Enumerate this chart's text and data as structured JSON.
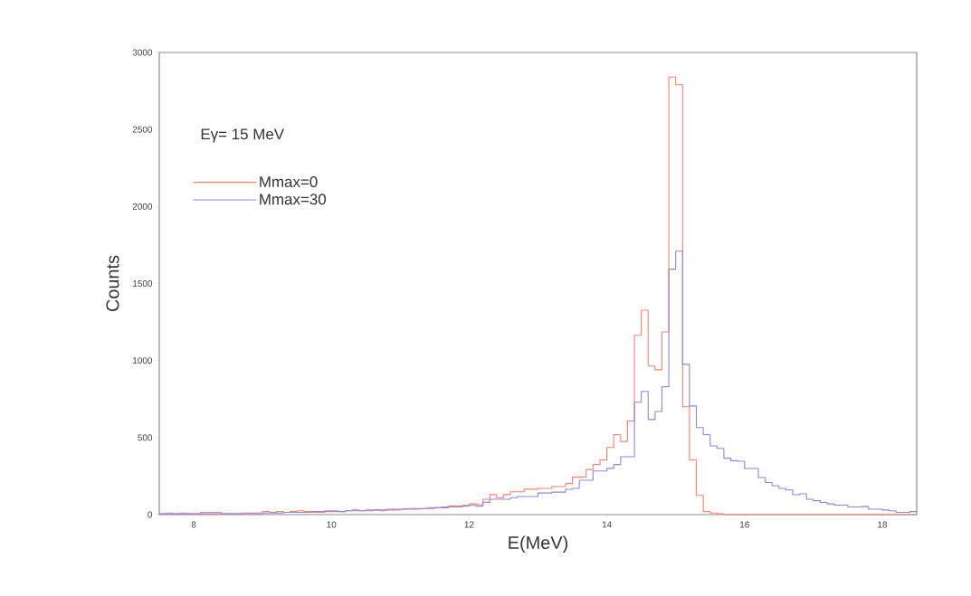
{
  "chart_data": {
    "type": "histogram",
    "xlabel": "E(MeV)",
    "ylabel": "Counts",
    "annotations": [
      "Eγ= 15 MeV"
    ],
    "bins": [
      7.5,
      7.6,
      7.7,
      7.8,
      7.9,
      8.0,
      8.1,
      8.2,
      8.3,
      8.4,
      8.5,
      8.6,
      8.7,
      8.8,
      8.9,
      9.0,
      9.1,
      9.2,
      9.3,
      9.4,
      9.5,
      9.6,
      9.7,
      9.8,
      9.9,
      10.0,
      10.1,
      10.2,
      10.3,
      10.4,
      10.5,
      10.6,
      10.7,
      10.8,
      10.9,
      11.0,
      11.1,
      11.2,
      11.3,
      11.4,
      11.5,
      11.6,
      11.7,
      11.8,
      11.9,
      12.0,
      12.1,
      12.2,
      12.3,
      12.4,
      12.5,
      12.6,
      12.7,
      12.8,
      12.9,
      13.0,
      13.1,
      13.2,
      13.3,
      13.4,
      13.5,
      13.6,
      13.7,
      13.8,
      13.9,
      14.0,
      14.1,
      14.2,
      14.3,
      14.4,
      14.5,
      14.6,
      14.7,
      14.8,
      14.9,
      15.0,
      15.1,
      15.2,
      15.3,
      15.4,
      15.5,
      15.6,
      15.7,
      15.8,
      15.9,
      16.0,
      16.1,
      16.2,
      16.3,
      16.4,
      16.5,
      16.6,
      16.7,
      16.8,
      16.9,
      17.0,
      17.1,
      17.2,
      17.3,
      17.4,
      17.5,
      17.6,
      17.7,
      17.8,
      17.9,
      18.0,
      18.1,
      18.2,
      18.3,
      18.4,
      18.5
    ],
    "series": [
      {
        "name": "Mmax=0",
        "color": "#ff8070",
        "values": [
          5,
          10,
          5,
          10,
          5,
          5,
          15,
          15,
          15,
          5,
          5,
          5,
          5,
          5,
          5,
          20,
          15,
          20,
          15,
          20,
          25,
          20,
          15,
          15,
          25,
          25,
          20,
          25,
          30,
          25,
          30,
          30,
          25,
          35,
          30,
          35,
          40,
          35,
          40,
          45,
          45,
          50,
          55,
          55,
          60,
          70,
          65,
          100,
          130,
          110,
          130,
          148,
          148,
          165,
          165,
          170,
          170,
          182,
          182,
          202,
          243,
          243,
          293,
          325,
          355,
          436,
          520,
          475,
          608,
          1164,
          1327,
          964,
          940,
          1186,
          2840,
          2790,
          700,
          355,
          125,
          20,
          10,
          5,
          0,
          0,
          0,
          0,
          0,
          0,
          0,
          0,
          0,
          0,
          0,
          0,
          0,
          0,
          0,
          0,
          0,
          0,
          0,
          0,
          0,
          0,
          0,
          0,
          0,
          0,
          0,
          0
        ]
      },
      {
        "name": "Mmax=30",
        "color": "#8c86e6",
        "values": [
          5,
          5,
          5,
          5,
          5,
          5,
          5,
          5,
          5,
          5,
          5,
          5,
          10,
          10,
          10,
          10,
          10,
          10,
          15,
          15,
          15,
          15,
          20,
          20,
          20,
          20,
          20,
          25,
          25,
          25,
          25,
          30,
          30,
          30,
          35,
          35,
          35,
          40,
          40,
          40,
          45,
          45,
          50,
          50,
          55,
          60,
          55,
          80,
          100,
          100,
          100,
          110,
          117,
          117,
          117,
          140,
          140,
          146,
          146,
          164,
          170,
          223,
          223,
          283,
          283,
          300,
          325,
          376,
          376,
          729,
          800,
          617,
          669,
          830,
          1593,
          1710,
          975,
          705,
          565,
          520,
          446,
          430,
          366,
          350,
          346,
          299,
          299,
          241,
          208,
          188,
          170,
          160,
          129,
          135,
          100,
          90,
          79,
          70,
          62,
          62,
          50,
          50,
          52,
          35,
          35,
          30,
          25,
          15,
          15,
          20
        ]
      }
    ],
    "xlim": [
      7.5,
      18.5
    ],
    "ylim": [
      0,
      3000
    ],
    "xticks": [
      8,
      10,
      12,
      14,
      16,
      18
    ],
    "yticks": [
      0,
      500,
      1000,
      1500,
      2000,
      2500,
      3000
    ],
    "legend": "top left"
  }
}
